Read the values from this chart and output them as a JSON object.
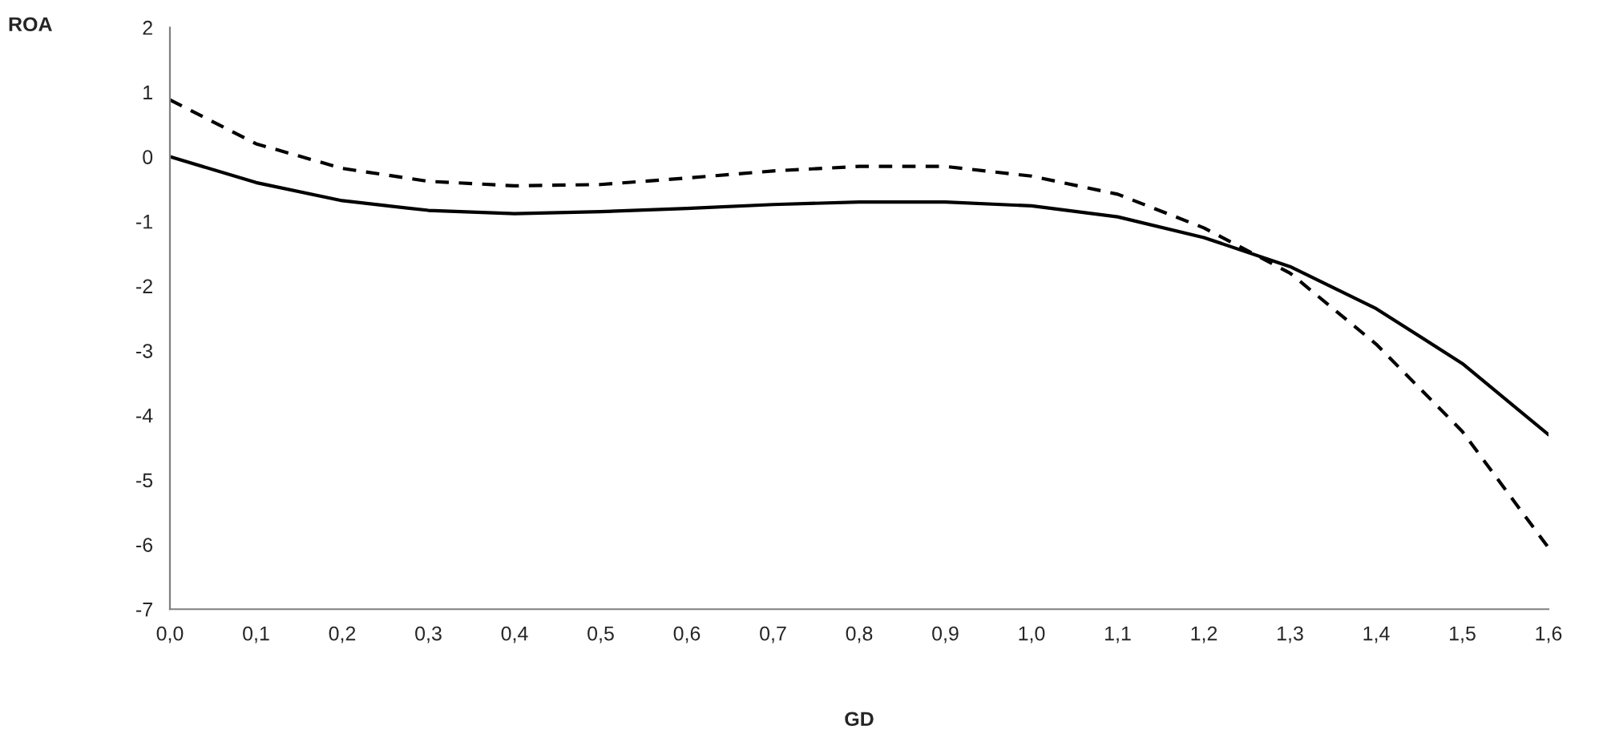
{
  "chart_data": {
    "type": "line",
    "xlabel": "GD",
    "ylabel": "ROA",
    "x": [
      0.0,
      0.1,
      0.2,
      0.3,
      0.4,
      0.5,
      0.6,
      0.7,
      0.8,
      0.9,
      1.0,
      1.1,
      1.2,
      1.3,
      1.4,
      1.5,
      1.6
    ],
    "series": [
      {
        "color": "#000000",
        "line_style": "solid",
        "values": [
          0,
          -0.4,
          -0.68,
          -0.83,
          -0.88,
          -0.85,
          -0.8,
          -0.74,
          -0.7,
          -0.7,
          -0.76,
          -0.93,
          -1.25,
          -1.7,
          -2.35,
          -3.2,
          -4.3
        ]
      },
      {
        "color": "#000000",
        "line_style": "dashed",
        "values": [
          0.88,
          0.2,
          -0.18,
          -0.38,
          -0.45,
          -0.43,
          -0.33,
          -0.22,
          -0.15,
          -0.15,
          -0.3,
          -0.58,
          -1.1,
          -1.8,
          -2.9,
          -4.25,
          -6.05
        ]
      }
    ],
    "xlim": [
      0.0,
      1.6
    ],
    "ylim": [
      -7,
      2
    ],
    "xticks": [
      {
        "value": 0.0,
        "label": "0,0"
      },
      {
        "value": 0.1,
        "label": "0,1"
      },
      {
        "value": 0.2,
        "label": "0,2"
      },
      {
        "value": 0.3,
        "label": "0,3"
      },
      {
        "value": 0.4,
        "label": "0,4"
      },
      {
        "value": 0.5,
        "label": "0,5"
      },
      {
        "value": 0.6,
        "label": "0,6"
      },
      {
        "value": 0.7,
        "label": "0,7"
      },
      {
        "value": 0.8,
        "label": "0,8"
      },
      {
        "value": 0.9,
        "label": "0,9"
      },
      {
        "value": 1.0,
        "label": "1,0"
      },
      {
        "value": 1.1,
        "label": "1,1"
      },
      {
        "value": 1.2,
        "label": "1,2"
      },
      {
        "value": 1.3,
        "label": "1,3"
      },
      {
        "value": 1.4,
        "label": "1,4"
      },
      {
        "value": 1.5,
        "label": "1,5"
      },
      {
        "value": 1.6,
        "label": "1,6"
      }
    ],
    "yticks": [
      -7,
      -6,
      -5,
      -4,
      -3,
      -2,
      -1,
      0,
      1,
      2
    ],
    "grid": false,
    "legend": false
  }
}
